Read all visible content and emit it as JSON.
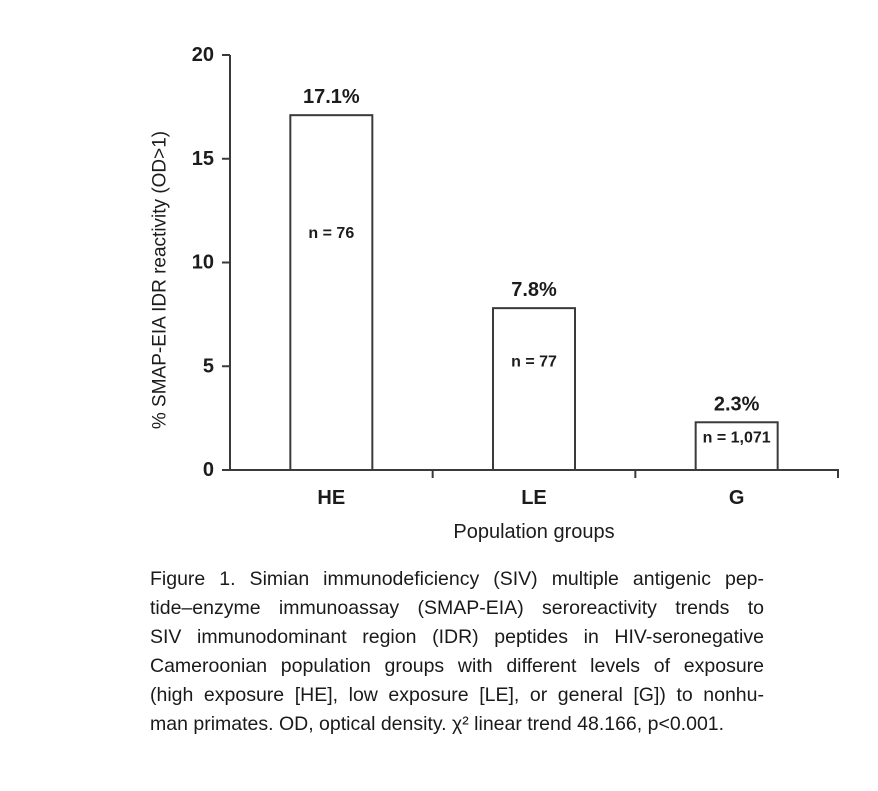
{
  "chart_data": {
    "type": "bar",
    "title": "",
    "categories": [
      "HE",
      "LE",
      "G"
    ],
    "values": [
      17.1,
      7.8,
      2.3
    ],
    "value_labels": [
      "17.1%",
      "7.8%",
      "2.3%"
    ],
    "n_labels": [
      "n = 76",
      "n = 77",
      "n = 1,071"
    ],
    "xlabel": "Population groups",
    "ylabel": "% SMAP-EIA IDR reactivity (OD>1)",
    "ylim": [
      0,
      20
    ],
    "yticks": [
      0,
      5,
      10,
      15,
      20
    ],
    "grid": false,
    "legend": null,
    "bar_fill": "#ffffff",
    "bar_stroke": "#3a3a3a",
    "axis_color": "#3a3a3a",
    "text_color": "#1c1c1c"
  },
  "figure": {
    "caption_lines": [
      "Figure 1. Simian immunodeficiency (SIV) multiple antigenic pep-",
      "tide–enzyme immunoassay (SMAP-EIA) seroreactivity trends to",
      "SIV immunodominant region (IDR) peptides in HIV-seronegative",
      "Cameroonian population groups with different levels of exposure",
      "(high exposure [HE], low exposure [LE], or general [G]) to nonhu-",
      "man primates. OD, optical density. χ² linear trend 48.166, p<0.001."
    ]
  }
}
